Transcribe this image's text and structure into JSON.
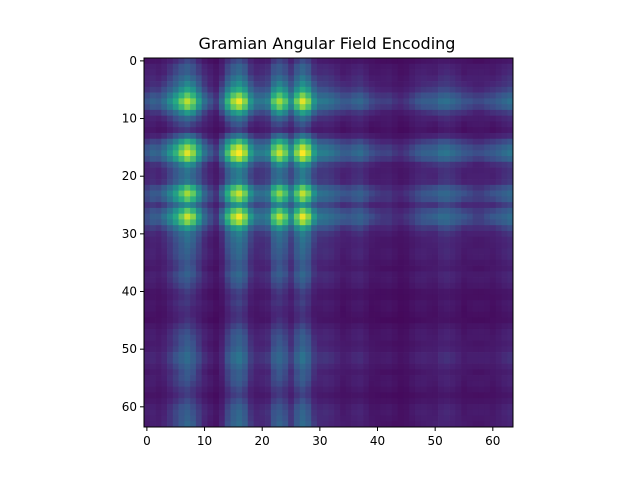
{
  "chart_data": {
    "type": "heatmap",
    "title": "Gramian Angular Field Encoding",
    "xlabel": "",
    "ylabel": "",
    "grid": false,
    "colormap": "viridis",
    "matrix_size": 64,
    "xlim": [
      -0.5,
      63.5
    ],
    "ylim": [
      63.5,
      -0.5
    ],
    "x_ticks": [
      0,
      10,
      20,
      30,
      40,
      50,
      60
    ],
    "y_ticks": [
      0,
      10,
      20,
      30,
      40,
      50,
      60
    ],
    "x_tick_labels": [
      "0",
      "10",
      "20",
      "30",
      "40",
      "50",
      "60"
    ],
    "y_tick_labels": [
      "0",
      "10",
      "20",
      "30",
      "40",
      "50",
      "60"
    ],
    "signal_strength": [
      0.15,
      0.2,
      0.2,
      0.28,
      0.38,
      0.52,
      0.72,
      0.92,
      0.78,
      0.48,
      0.25,
      0.15,
      0.1,
      0.28,
      0.6,
      0.85,
      1.0,
      0.8,
      0.45,
      0.3,
      0.28,
      0.32,
      0.68,
      0.88,
      0.7,
      0.4,
      0.72,
      0.98,
      0.8,
      0.45,
      0.3,
      0.28,
      0.25,
      0.22,
      0.2,
      0.18,
      0.2,
      0.22,
      0.18,
      0.15,
      0.12,
      0.1,
      0.1,
      0.08,
      0.08,
      0.1,
      0.12,
      0.15,
      0.18,
      0.2,
      0.22,
      0.25,
      0.25,
      0.22,
      0.2,
      0.18,
      0.15,
      0.12,
      0.12,
      0.15,
      0.18,
      0.2,
      0.22,
      0.25
    ],
    "bright_columns": [
      7,
      16,
      27
    ],
    "dark_bands": [
      12,
      19,
      22,
      24
    ]
  },
  "colors": {
    "viridis_low": "#440154",
    "viridis_mid": "#21918c",
    "viridis_high": "#fde725",
    "axis": "#000000",
    "background": "#ffffff"
  }
}
